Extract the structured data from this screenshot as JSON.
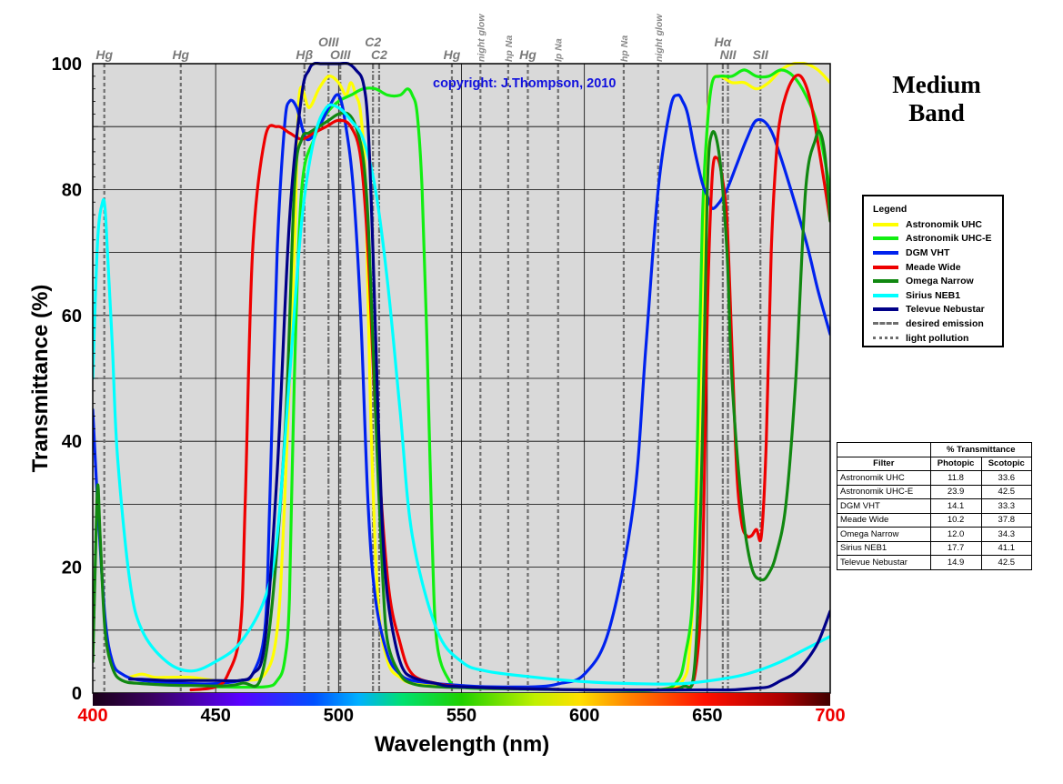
{
  "chart_data": {
    "type": "line",
    "xlabel": "Wavelength (nm)",
    "ylabel": "Transmittance (%)",
    "xlim": [
      400,
      700
    ],
    "ylim": [
      0,
      100
    ],
    "x_ticks": [
      "400",
      "450",
      "500",
      "550",
      "600",
      "650",
      "700"
    ],
    "y_ticks": [
      "0",
      "20",
      "40",
      "60",
      "80",
      "100"
    ],
    "grid": true,
    "annotation": "copyright: J.Thompson, 2010",
    "emission_lines": [
      {
        "label": "Hg",
        "x": 404.7,
        "kind": "light",
        "style": "italic"
      },
      {
        "label": "Hg",
        "x": 435.8,
        "kind": "light",
        "style": "italic"
      },
      {
        "label": "Hβ",
        "x": 486.1,
        "kind": "desired",
        "style": "italic"
      },
      {
        "label": "OIII",
        "x": 495.9,
        "kind": "desired",
        "style": "italic-top"
      },
      {
        "label": "OIII",
        "x": 500.7,
        "kind": "desired",
        "style": "italic"
      },
      {
        "label": "C2",
        "x": 514.0,
        "kind": "desired",
        "style": "italic-top"
      },
      {
        "label": "C2",
        "x": 516.5,
        "kind": "desired",
        "style": "italic"
      },
      {
        "label": "Hg",
        "x": 546.1,
        "kind": "light",
        "style": "italic"
      },
      {
        "label": "night glow",
        "x": 557.7,
        "kind": "light",
        "style": "rotated"
      },
      {
        "label": "hp Na",
        "x": 569.0,
        "kind": "light",
        "style": "rotated"
      },
      {
        "label": "Hg",
        "x": 577.0,
        "kind": "light",
        "style": "italic"
      },
      {
        "label": "lp Na",
        "x": 589.3,
        "kind": "light",
        "style": "rotated"
      },
      {
        "label": "hp Na",
        "x": 616.0,
        "kind": "light",
        "style": "rotated"
      },
      {
        "label": "night glow",
        "x": 630.0,
        "kind": "light",
        "style": "rotated"
      },
      {
        "label": "Hα",
        "x": 656.3,
        "kind": "desired",
        "style": "italic-top"
      },
      {
        "label": "NII",
        "x": 658.4,
        "kind": "desired",
        "style": "italic"
      },
      {
        "label": "SII",
        "x": 671.6,
        "kind": "desired",
        "style": "italic"
      }
    ],
    "series": [
      {
        "name": "Astronomik UHC",
        "color": "#ffff00",
        "x": [
          415,
          420,
          425,
          430,
          440,
          450,
          460,
          470,
          475,
          478,
          482,
          484,
          488,
          492,
          496,
          500,
          503,
          505,
          507,
          509,
          511,
          513,
          516,
          520,
          525,
          530,
          540,
          550,
          560,
          600,
          630,
          640,
          643,
          646,
          648,
          650,
          652,
          655,
          660,
          665,
          670,
          675,
          680,
          685,
          690,
          695,
          700
        ],
        "y": [
          2.5,
          3,
          2.5,
          2.5,
          2.5,
          2,
          2,
          3,
          10,
          30,
          70,
          95,
          93,
          96,
          98,
          97,
          95,
          97,
          95,
          92,
          80,
          45,
          15,
          5,
          2.5,
          1.5,
          1.2,
          1,
          0.8,
          0.5,
          0.5,
          2,
          8,
          30,
          65,
          90,
          97,
          98,
          97,
          97,
          96,
          97,
          99,
          100,
          100,
          99,
          97
        ]
      },
      {
        "name": "Astronomik UHC-E",
        "color": "#11ee11",
        "x": [
          450,
          470,
          475,
          478,
          480,
          482,
          485,
          490,
          495,
          500,
          505,
          510,
          515,
          520,
          525,
          528,
          530,
          532,
          534,
          536,
          538,
          540,
          545,
          550,
          560,
          600,
          630,
          638,
          641,
          644,
          646,
          648,
          650,
          652,
          655,
          660,
          665,
          670,
          675,
          680,
          685,
          690,
          695,
          700
        ],
        "y": [
          1,
          1,
          2,
          5,
          15,
          50,
          80,
          88,
          92,
          94,
          95,
          96,
          96,
          95,
          95,
          96,
          95,
          92,
          80,
          55,
          25,
          8,
          2,
          1,
          0.7,
          0.5,
          0.5,
          2,
          6,
          15,
          40,
          75,
          90,
          97,
          98,
          98,
          99,
          98,
          98,
          99,
          98,
          95,
          90,
          80
        ]
      },
      {
        "name": "DGM VHT",
        "color": "#0022ee",
        "x": [
          400,
          402,
          405,
          408,
          412,
          420,
          440,
          450,
          460,
          465,
          470,
          472,
          475,
          478,
          480,
          483,
          487,
          492,
          496,
          500,
          503,
          506,
          509,
          512,
          515,
          520,
          525,
          530,
          540,
          550,
          560,
          580,
          590,
          600,
          610,
          620,
          625,
          630,
          635,
          638,
          640,
          642,
          645,
          648,
          650,
          652,
          655,
          658,
          662,
          666,
          670,
          675,
          680,
          690,
          695,
          700
        ],
        "y": [
          45,
          30,
          12,
          5,
          3,
          2,
          1.5,
          1.5,
          2,
          3,
          10,
          30,
          70,
          90,
          94,
          93,
          88,
          90,
          93,
          95,
          90,
          80,
          60,
          30,
          15,
          6,
          3,
          2,
          1.5,
          1.2,
          1,
          1,
          1.5,
          3,
          10,
          30,
          55,
          80,
          93,
          95,
          94,
          92,
          86,
          81,
          79,
          77,
          78,
          80,
          84,
          88,
          91,
          90,
          85,
          72,
          64,
          57
        ]
      },
      {
        "name": "Meade Wide",
        "color": "#ee0000",
        "x": [
          440,
          450,
          455,
          460,
          462,
          465,
          470,
          475,
          480,
          485,
          490,
          495,
          500,
          505,
          509,
          512,
          515,
          520,
          525,
          530,
          540,
          550,
          560,
          600,
          630,
          640,
          645,
          648,
          650,
          652,
          654,
          656,
          658,
          660,
          662,
          664,
          666,
          668,
          670,
          672,
          674,
          676,
          678,
          680,
          684,
          688,
          692,
          696,
          700
        ],
        "y": [
          0.5,
          1,
          3,
          10,
          30,
          70,
          88,
          90,
          89,
          88,
          89,
          90,
          91,
          90,
          85,
          70,
          45,
          18,
          8,
          3,
          1.5,
          1,
          0.8,
          0.5,
          0.5,
          1,
          3,
          20,
          60,
          82,
          85,
          82,
          75,
          55,
          35,
          27,
          25,
          25,
          26,
          25,
          40,
          70,
          85,
          92,
          97,
          98,
          94,
          85,
          75
        ]
      },
      {
        "name": "Omega Narrow",
        "color": "#118811",
        "x": [
          400,
          401,
          402,
          403,
          405,
          408,
          412,
          420,
          440,
          460,
          470,
          478,
          482,
          485,
          488,
          492,
          496,
          500,
          504,
          507,
          510,
          512,
          514,
          516,
          518,
          520,
          525,
          530,
          540,
          560,
          600,
          630,
          640,
          645,
          648,
          650,
          652,
          655,
          658,
          660,
          664,
          668,
          672,
          675,
          678,
          682,
          686,
          690,
          694,
          696,
          698,
          700
        ],
        "y": [
          5,
          20,
          33,
          25,
          10,
          4,
          2,
          1.5,
          1.2,
          1.5,
          5,
          40,
          80,
          88,
          89,
          90,
          91,
          92,
          92,
          90,
          85,
          75,
          55,
          35,
          18,
          8,
          3,
          1.5,
          1,
          0.8,
          0.5,
          0.5,
          1,
          5,
          40,
          80,
          89,
          85,
          70,
          50,
          30,
          20,
          18,
          19,
          22,
          30,
          50,
          80,
          88,
          89,
          85,
          75
        ]
      },
      {
        "name": "Sirius NEB1",
        "color": "#00ffff",
        "x": [
          400,
          402,
          404,
          405,
          406,
          408,
          410,
          415,
          420,
          430,
          440,
          450,
          460,
          470,
          475,
          480,
          485,
          490,
          495,
          500,
          505,
          510,
          515,
          520,
          525,
          530,
          540,
          550,
          560,
          580,
          600,
          620,
          640,
          660,
          670,
          680,
          690,
          700
        ],
        "y": [
          50,
          72,
          78,
          77,
          70,
          55,
          38,
          18,
          10,
          5,
          3.5,
          5,
          8,
          15,
          25,
          50,
          75,
          88,
          93,
          93,
          91,
          88,
          80,
          65,
          45,
          25,
          10,
          5,
          3.5,
          2.5,
          1.8,
          1.5,
          1.5,
          2.5,
          3.5,
          5,
          7,
          9
        ]
      },
      {
        "name": "Televue Nebustar",
        "color": "#000088",
        "x": [
          415,
          420,
          430,
          440,
          450,
          460,
          465,
          470,
          475,
          480,
          485,
          488,
          490,
          493,
          496,
          500,
          504,
          507,
          510,
          512,
          514,
          516,
          518,
          520,
          523,
          526,
          530,
          540,
          550,
          600,
          650,
          660,
          670,
          675,
          680,
          685,
          690,
          695,
          700
        ],
        "y": [
          2.2,
          2.2,
          2,
          2,
          2,
          2,
          3,
          8,
          35,
          75,
          95,
          99,
          100,
          100,
          100,
          100,
          100,
          99,
          97,
          90,
          70,
          45,
          25,
          15,
          8,
          4,
          2.5,
          1.5,
          1,
          0.5,
          0.5,
          0.5,
          0.8,
          1,
          2,
          3,
          5,
          8,
          13
        ]
      }
    ]
  },
  "side_title_line1": "Medium",
  "side_title_line2": "Band",
  "legend": {
    "title": "Legend",
    "extra_entries": [
      {
        "label": "desired emission",
        "style": "dashdot"
      },
      {
        "label": "light pollution",
        "style": "dash"
      }
    ]
  },
  "table": {
    "group_header": "% Transmittance",
    "col_filter": "Filter",
    "col_photopic": "Photopic",
    "col_scotopic": "Scotopic",
    "rows": [
      {
        "filter": "Astronomik UHC",
        "photopic": "11.8",
        "scotopic": "33.6"
      },
      {
        "filter": "Astronomik UHC-E",
        "photopic": "23.9",
        "scotopic": "42.5"
      },
      {
        "filter": "DGM VHT",
        "photopic": "14.1",
        "scotopic": "33.3"
      },
      {
        "filter": "Meade Wide",
        "photopic": "10.2",
        "scotopic": "37.8"
      },
      {
        "filter": "Omega Narrow",
        "photopic": "12.0",
        "scotopic": "34.3"
      },
      {
        "filter": "Sirius NEB1",
        "photopic": "17.7",
        "scotopic": "41.1"
      },
      {
        "filter": "Televue Nebustar",
        "photopic": "14.9",
        "scotopic": "42.5"
      }
    ]
  }
}
